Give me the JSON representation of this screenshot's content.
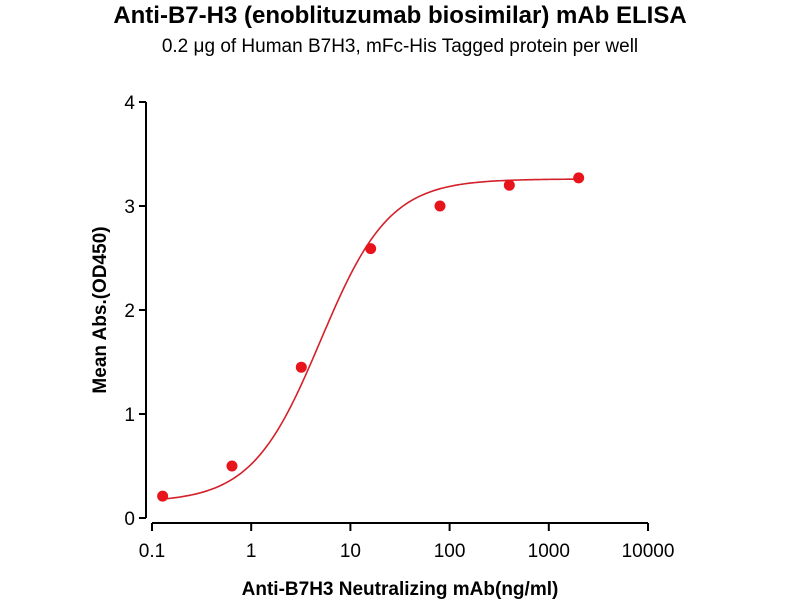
{
  "chart_data": {
    "type": "scatter",
    "title": "Anti-B7-H3 (enoblituzumab biosimilar) mAb ELISA",
    "subtitle": "0.2 μg of Human B7H3, mFc-His Tagged protein per well",
    "xlabel": "Anti-B7H3 Neutralizing mAb(ng/ml)",
    "ylabel": "Mean Abs.(OD450)",
    "xscale": "log",
    "xlim": [
      0.1,
      10000
    ],
    "ylim": [
      0,
      4
    ],
    "xticks": [
      0.1,
      1,
      10,
      100,
      1000,
      10000
    ],
    "xtick_labels": [
      "0.1",
      "1",
      "10",
      "100",
      "1000",
      "10000"
    ],
    "yticks": [
      0,
      1,
      2,
      3,
      4
    ],
    "ytick_labels": [
      "0",
      "1",
      "2",
      "3",
      "4"
    ],
    "grid": false,
    "series": [
      {
        "x": [
          0.128,
          0.64,
          3.2,
          16,
          80,
          400,
          2000
        ],
        "y": [
          0.21,
          0.5,
          1.45,
          2.59,
          3.0,
          3.2,
          3.27
        ]
      }
    ],
    "fit_curve": {
      "type": "4PL",
      "bottom": 0.15,
      "top": 3.26,
      "ec50": 5.0,
      "hill": 1.25
    },
    "colors": {
      "series": "#e8141c",
      "curve": "#d4202a",
      "axis": "#000000"
    }
  }
}
